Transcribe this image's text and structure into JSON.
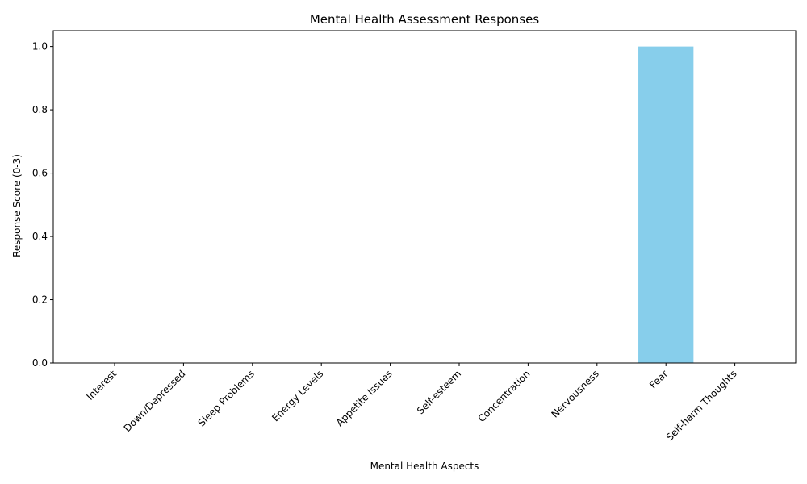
{
  "chart_data": {
    "type": "bar",
    "title": "Mental Health Assessment Responses",
    "xlabel": "Mental Health Aspects",
    "ylabel": "Response Score (0-3)",
    "categories": [
      "Interest",
      "Down/Depressed",
      "Sleep Problems",
      "Energy Levels",
      "Appetite Issues",
      "Self-esteem",
      "Concentration",
      "Nervousness",
      "Fear",
      "Self-harm Thoughts"
    ],
    "values": [
      0,
      0,
      0,
      0,
      0,
      0,
      0,
      0,
      1,
      0
    ],
    "ylim": [
      0,
      1.05
    ],
    "yticks": [
      "0.0",
      "0.2",
      "0.4",
      "0.6",
      "0.8",
      "1.0"
    ],
    "bar_color": "#87CEEB",
    "grid": false,
    "legend": "none"
  }
}
